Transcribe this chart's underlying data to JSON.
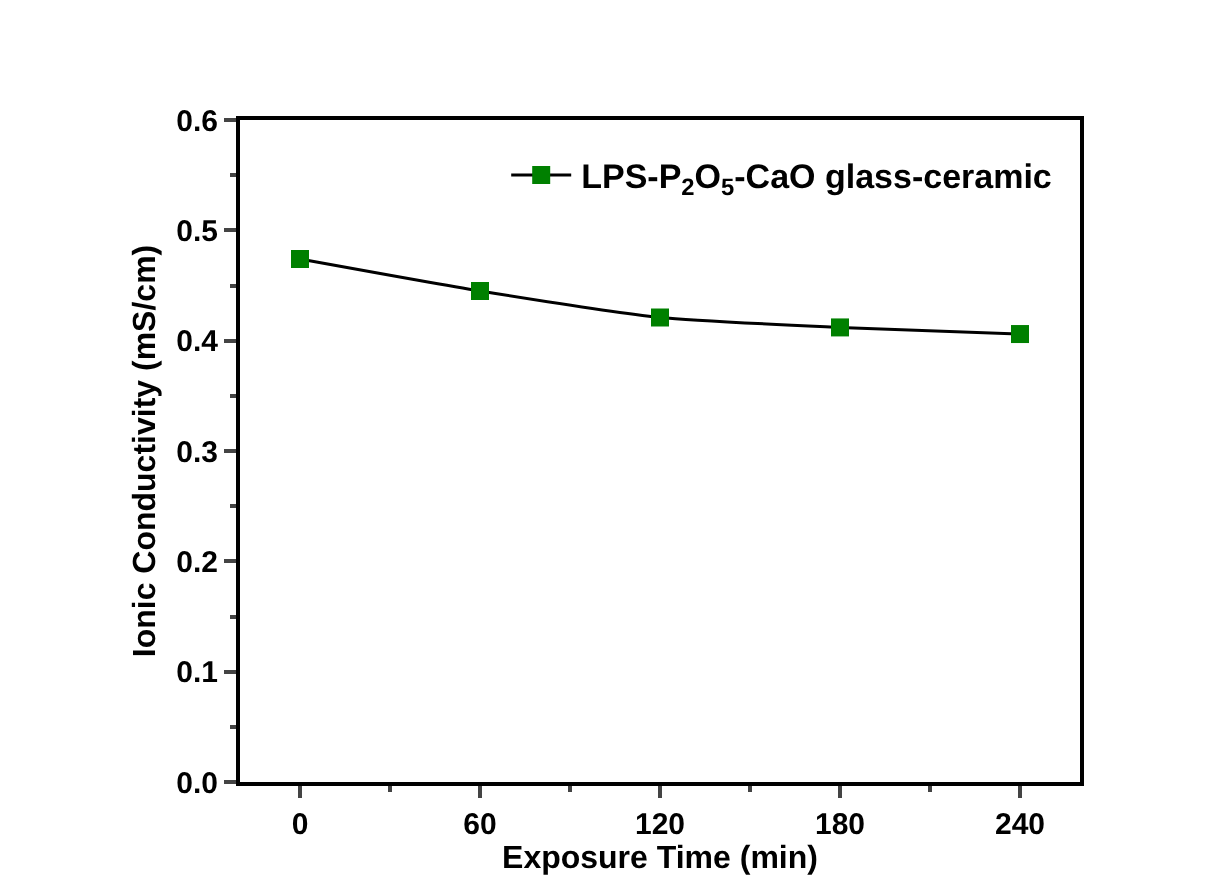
{
  "chart_data": {
    "type": "line",
    "xlabel": "Exposure Time (min)",
    "ylabel": "Ionic Conductivity (mS/cm)",
    "x": [
      0,
      60,
      120,
      180,
      240
    ],
    "series": [
      {
        "name": "LPS-P$_{2}$O$_{5}$-CaO glass-ceramic",
        "color": "#008000",
        "values": [
          0.474,
          0.445,
          0.421,
          0.412,
          0.406
        ]
      }
    ],
    "xlim": [
      -20,
      260
    ],
    "xticks": [
      0,
      60,
      120,
      180,
      240
    ],
    "ylim": [
      0,
      0.6
    ],
    "yticks": [
      {
        "value": 0,
        "label": "0.0"
      },
      0.1,
      0.2,
      0.3,
      0.4,
      0.5,
      0.6
    ],
    "marker": "square",
    "line_style": "solid",
    "legend": "top right"
  }
}
